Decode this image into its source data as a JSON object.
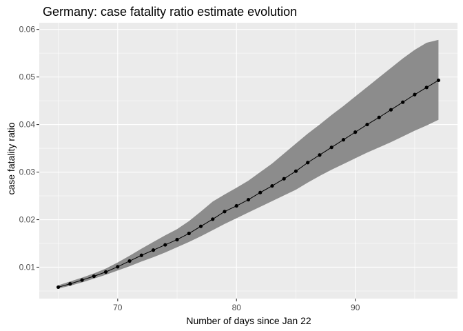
{
  "chart_data": {
    "type": "line",
    "title": "Germany: case fatality ratio estimate evolution",
    "xlabel": "Number of days since Jan 22",
    "ylabel": "case fatality ratio",
    "xlim": [
      63.4,
      98.6
    ],
    "ylim": [
      0.0034,
      0.0614
    ],
    "x_ticks": [
      70,
      80,
      90
    ],
    "y_ticks": [
      0.01,
      0.02,
      0.03,
      0.04,
      0.05,
      0.06
    ],
    "x_tick_labels": [
      "70",
      "80",
      "90"
    ],
    "y_tick_labels": [
      "0.01",
      "0.02",
      "0.03",
      "0.04",
      "0.05",
      "0.06"
    ],
    "grid": true,
    "colors": {
      "panel": "#ebebeb",
      "grid_major": "#ffffff",
      "ribbon": "#8c8c8c",
      "line": "#000000",
      "point": "#000000"
    },
    "series": [
      {
        "x": [
          65,
          66,
          67,
          68,
          69,
          70,
          71,
          72,
          73,
          74,
          75,
          76,
          77,
          78,
          79,
          80,
          81,
          82,
          83,
          84,
          85,
          86,
          87,
          88,
          89,
          90,
          91,
          92,
          93,
          94,
          95,
          96,
          97
        ],
        "y": [
          0.0058,
          0.0065,
          0.0073,
          0.0081,
          0.009,
          0.0101,
          0.0113,
          0.0125,
          0.0136,
          0.0147,
          0.0158,
          0.0171,
          0.0186,
          0.0201,
          0.0217,
          0.0229,
          0.0242,
          0.0257,
          0.0271,
          0.0286,
          0.0302,
          0.032,
          0.0336,
          0.0352,
          0.0368,
          0.0384,
          0.04,
          0.0415,
          0.0431,
          0.0447,
          0.0463,
          0.0478,
          0.0493
        ],
        "lower": [
          0.0055,
          0.0061,
          0.0068,
          0.0076,
          0.0084,
          0.0093,
          0.0102,
          0.0112,
          0.0121,
          0.0131,
          0.0142,
          0.0153,
          0.0165,
          0.0178,
          0.0191,
          0.0203,
          0.0215,
          0.0227,
          0.0239,
          0.0251,
          0.0263,
          0.0278,
          0.0292,
          0.0305,
          0.0317,
          0.0329,
          0.0341,
          0.0352,
          0.0363,
          0.0375,
          0.0387,
          0.0398,
          0.041
        ],
        "upper": [
          0.0062,
          0.007,
          0.0078,
          0.0087,
          0.0097,
          0.011,
          0.0124,
          0.0139,
          0.0153,
          0.0167,
          0.018,
          0.0197,
          0.0217,
          0.0238,
          0.0253,
          0.0267,
          0.0282,
          0.03,
          0.0318,
          0.0339,
          0.036,
          0.0381,
          0.04,
          0.042,
          0.0439,
          0.0459,
          0.0479,
          0.0499,
          0.0519,
          0.0539,
          0.0557,
          0.0572,
          0.0578
        ]
      }
    ]
  }
}
